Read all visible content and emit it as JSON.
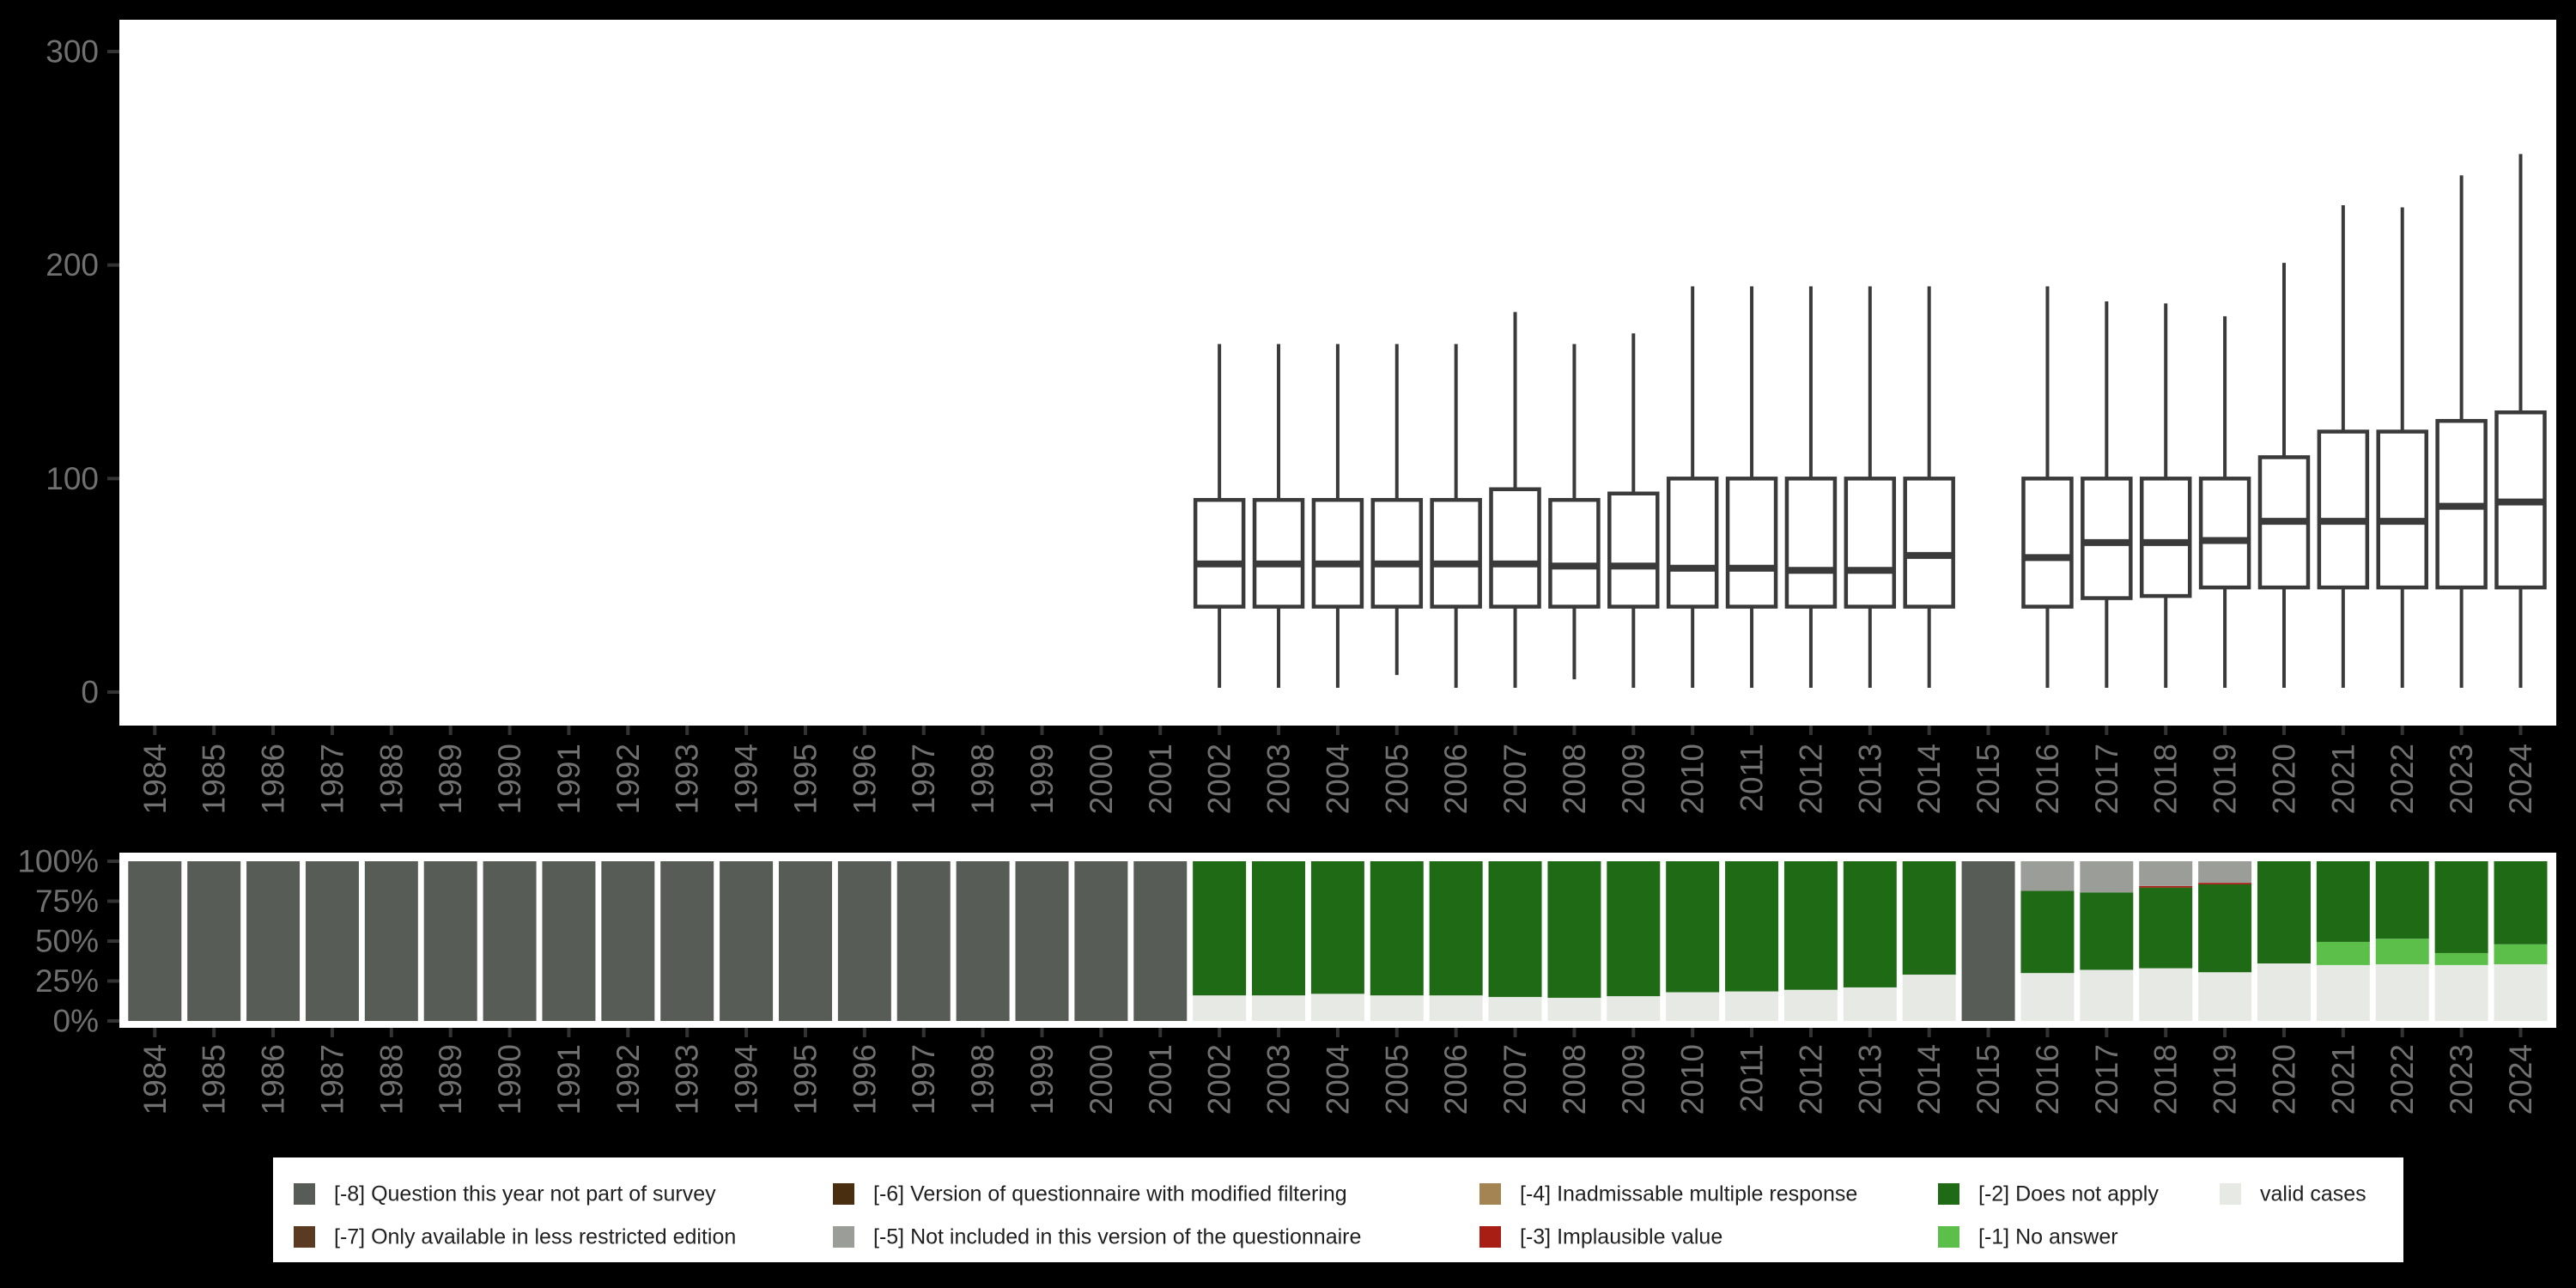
{
  "colors": {
    "-8": "#575D56",
    "-7": "#5A3A20",
    "-6": "#4A2E10",
    "-5": "#9B9E98",
    "-4": "#A58454",
    "-3": "#A81E15",
    "-2": "#1F6B15",
    "-1": "#5BBF4A",
    "valid": "#E7EAE4",
    "background": "#000000",
    "panel": "#FFFFFF",
    "axis_text": "#707070",
    "tick": "#333333",
    "box_stroke": "#3A3A3A",
    "legend_text": "#1F1F1F",
    "legend_background": "#FFFFFF"
  },
  "chart_data": [
    {
      "type": "boxplot",
      "title": "",
      "xlabel": "",
      "ylabel": "",
      "ylim": [
        0,
        300
      ],
      "grid": false,
      "categories": [
        "1984",
        "1985",
        "1986",
        "1987",
        "1988",
        "1989",
        "1990",
        "1991",
        "1992",
        "1993",
        "1994",
        "1995",
        "1996",
        "1997",
        "1998",
        "1999",
        "2000",
        "2001",
        "2002",
        "2003",
        "2004",
        "2005",
        "2006",
        "2007",
        "2008",
        "2009",
        "2010",
        "2011",
        "2012",
        "2013",
        "2014",
        "2015",
        "2016",
        "2017",
        "2018",
        "2019",
        "2020",
        "2021",
        "2022",
        "2023",
        "2024"
      ],
      "y_ticks": [
        {
          "value": 0,
          "label": "0"
        },
        {
          "value": 100,
          "label": "100"
        },
        {
          "value": 200,
          "label": "200"
        },
        {
          "value": 300,
          "label": "300"
        }
      ],
      "boxes": [
        {
          "year": "2002",
          "low": 2,
          "q1": 40,
          "median": 60,
          "q3": 90,
          "high": 163
        },
        {
          "year": "2003",
          "low": 2,
          "q1": 40,
          "median": 60,
          "q3": 90,
          "high": 163
        },
        {
          "year": "2004",
          "low": 2,
          "q1": 40,
          "median": 60,
          "q3": 90,
          "high": 163
        },
        {
          "year": "2005",
          "low": 8,
          "q1": 40,
          "median": 60,
          "q3": 90,
          "high": 163
        },
        {
          "year": "2006",
          "low": 2,
          "q1": 40,
          "median": 60,
          "q3": 90,
          "high": 163
        },
        {
          "year": "2007",
          "low": 2,
          "q1": 40,
          "median": 60,
          "q3": 95,
          "high": 178
        },
        {
          "year": "2008",
          "low": 6,
          "q1": 40,
          "median": 59,
          "q3": 90,
          "high": 163
        },
        {
          "year": "2009",
          "low": 2,
          "q1": 40,
          "median": 59,
          "q3": 93,
          "high": 168
        },
        {
          "year": "2010",
          "low": 2,
          "q1": 40,
          "median": 58,
          "q3": 100,
          "high": 190
        },
        {
          "year": "2011",
          "low": 2,
          "q1": 40,
          "median": 58,
          "q3": 100,
          "high": 190
        },
        {
          "year": "2012",
          "low": 2,
          "q1": 40,
          "median": 57,
          "q3": 100,
          "high": 190
        },
        {
          "year": "2013",
          "low": 2,
          "q1": 40,
          "median": 57,
          "q3": 100,
          "high": 190
        },
        {
          "year": "2014",
          "low": 2,
          "q1": 40,
          "median": 64,
          "q3": 100,
          "high": 190
        },
        {
          "year": "2016",
          "low": 2,
          "q1": 40,
          "median": 63,
          "q3": 100,
          "high": 190
        },
        {
          "year": "2017",
          "low": 2,
          "q1": 44,
          "median": 70,
          "q3": 100,
          "high": 183
        },
        {
          "year": "2018",
          "low": 2,
          "q1": 45,
          "median": 70,
          "q3": 100,
          "high": 182
        },
        {
          "year": "2019",
          "low": 2,
          "q1": 49,
          "median": 71,
          "q3": 100,
          "high": 176
        },
        {
          "year": "2020",
          "low": 2,
          "q1": 49,
          "median": 80,
          "q3": 110,
          "high": 201
        },
        {
          "year": "2021",
          "low": 2,
          "q1": 49,
          "median": 80,
          "q3": 122,
          "high": 228
        },
        {
          "year": "2022",
          "low": 2,
          "q1": 49,
          "median": 80,
          "q3": 122,
          "high": 227
        },
        {
          "year": "2023",
          "low": 2,
          "q1": 49,
          "median": 87,
          "q3": 127,
          "high": 242
        },
        {
          "year": "2024",
          "low": 2,
          "q1": 49,
          "median": 89,
          "q3": 131,
          "high": 252
        }
      ]
    },
    {
      "type": "bar",
      "stacked": true,
      "unit": "percent",
      "title": "",
      "xlabel": "",
      "ylabel": "",
      "ylim": [
        0,
        100
      ],
      "grid": false,
      "categories": [
        "1984",
        "1985",
        "1986",
        "1987",
        "1988",
        "1989",
        "1990",
        "1991",
        "1992",
        "1993",
        "1994",
        "1995",
        "1996",
        "1997",
        "1998",
        "1999",
        "2000",
        "2001",
        "2002",
        "2003",
        "2004",
        "2005",
        "2006",
        "2007",
        "2008",
        "2009",
        "2010",
        "2011",
        "2012",
        "2013",
        "2014",
        "2015",
        "2016",
        "2017",
        "2018",
        "2019",
        "2020",
        "2021",
        "2022",
        "2023",
        "2024"
      ],
      "y_ticks": [
        {
          "value": 0,
          "label": "0%"
        },
        {
          "value": 25,
          "label": "25%"
        },
        {
          "value": 50,
          "label": "50%"
        },
        {
          "value": 75,
          "label": "75%"
        },
        {
          "value": 100,
          "label": "100%"
        }
      ],
      "stacks": [
        {
          "year": "1984",
          "segments": [
            {
              "key": "-8",
              "pct": 100
            }
          ]
        },
        {
          "year": "1985",
          "segments": [
            {
              "key": "-8",
              "pct": 100
            }
          ]
        },
        {
          "year": "1986",
          "segments": [
            {
              "key": "-8",
              "pct": 100
            }
          ]
        },
        {
          "year": "1987",
          "segments": [
            {
              "key": "-8",
              "pct": 100
            }
          ]
        },
        {
          "year": "1988",
          "segments": [
            {
              "key": "-8",
              "pct": 100
            }
          ]
        },
        {
          "year": "1989",
          "segments": [
            {
              "key": "-8",
              "pct": 100
            }
          ]
        },
        {
          "year": "1990",
          "segments": [
            {
              "key": "-8",
              "pct": 100
            }
          ]
        },
        {
          "year": "1991",
          "segments": [
            {
              "key": "-8",
              "pct": 100
            }
          ]
        },
        {
          "year": "1992",
          "segments": [
            {
              "key": "-8",
              "pct": 100
            }
          ]
        },
        {
          "year": "1993",
          "segments": [
            {
              "key": "-8",
              "pct": 100
            }
          ]
        },
        {
          "year": "1994",
          "segments": [
            {
              "key": "-8",
              "pct": 100
            }
          ]
        },
        {
          "year": "1995",
          "segments": [
            {
              "key": "-8",
              "pct": 100
            }
          ]
        },
        {
          "year": "1996",
          "segments": [
            {
              "key": "-8",
              "pct": 100
            }
          ]
        },
        {
          "year": "1997",
          "segments": [
            {
              "key": "-8",
              "pct": 100
            }
          ]
        },
        {
          "year": "1998",
          "segments": [
            {
              "key": "-8",
              "pct": 100
            }
          ]
        },
        {
          "year": "1999",
          "segments": [
            {
              "key": "-8",
              "pct": 100
            }
          ]
        },
        {
          "year": "2000",
          "segments": [
            {
              "key": "-8",
              "pct": 100
            }
          ]
        },
        {
          "year": "2001",
          "segments": [
            {
              "key": "-8",
              "pct": 100
            }
          ]
        },
        {
          "year": "2002",
          "segments": [
            {
              "key": "-2",
              "pct": 84
            },
            {
              "key": "valid",
              "pct": 16
            }
          ]
        },
        {
          "year": "2003",
          "segments": [
            {
              "key": "-2",
              "pct": 84
            },
            {
              "key": "valid",
              "pct": 16
            }
          ]
        },
        {
          "year": "2004",
          "segments": [
            {
              "key": "-2",
              "pct": 83
            },
            {
              "key": "valid",
              "pct": 17
            }
          ]
        },
        {
          "year": "2005",
          "segments": [
            {
              "key": "-2",
              "pct": 84
            },
            {
              "key": "valid",
              "pct": 16
            }
          ]
        },
        {
          "year": "2006",
          "segments": [
            {
              "key": "-2",
              "pct": 84
            },
            {
              "key": "valid",
              "pct": 16
            }
          ]
        },
        {
          "year": "2007",
          "segments": [
            {
              "key": "-2",
              "pct": 85
            },
            {
              "key": "valid",
              "pct": 15
            }
          ]
        },
        {
          "year": "2008",
          "segments": [
            {
              "key": "-2",
              "pct": 85.5
            },
            {
              "key": "valid",
              "pct": 14.5
            }
          ]
        },
        {
          "year": "2009",
          "segments": [
            {
              "key": "-2",
              "pct": 84.5
            },
            {
              "key": "valid",
              "pct": 15.5
            }
          ]
        },
        {
          "year": "2010",
          "segments": [
            {
              "key": "-2",
              "pct": 82
            },
            {
              "key": "valid",
              "pct": 18
            }
          ]
        },
        {
          "year": "2011",
          "segments": [
            {
              "key": "-2",
              "pct": 81.5
            },
            {
              "key": "valid",
              "pct": 18.5
            }
          ]
        },
        {
          "year": "2012",
          "segments": [
            {
              "key": "-2",
              "pct": 80.5
            },
            {
              "key": "valid",
              "pct": 19.5
            }
          ]
        },
        {
          "year": "2013",
          "segments": [
            {
              "key": "-2",
              "pct": 79
            },
            {
              "key": "valid",
              "pct": 21
            }
          ]
        },
        {
          "year": "2014",
          "segments": [
            {
              "key": "-2",
              "pct": 71
            },
            {
              "key": "valid",
              "pct": 29
            }
          ]
        },
        {
          "year": "2015",
          "segments": [
            {
              "key": "-8",
              "pct": 100
            }
          ]
        },
        {
          "year": "2016",
          "segments": [
            {
              "key": "-5",
              "pct": 18.5
            },
            {
              "key": "-2",
              "pct": 51.5
            },
            {
              "key": "valid",
              "pct": 30
            }
          ]
        },
        {
          "year": "2017",
          "segments": [
            {
              "key": "-5",
              "pct": 19.5
            },
            {
              "key": "-2",
              "pct": 48.5
            },
            {
              "key": "valid",
              "pct": 32
            }
          ]
        },
        {
          "year": "2018",
          "segments": [
            {
              "key": "-5",
              "pct": 15.5
            },
            {
              "key": "-3",
              "pct": 1
            },
            {
              "key": "-2",
              "pct": 50.5
            },
            {
              "key": "valid",
              "pct": 33
            }
          ]
        },
        {
          "year": "2019",
          "segments": [
            {
              "key": "-5",
              "pct": 13.5
            },
            {
              "key": "-3",
              "pct": 1
            },
            {
              "key": "-2",
              "pct": 55
            },
            {
              "key": "valid",
              "pct": 30.5
            }
          ]
        },
        {
          "year": "2020",
          "segments": [
            {
              "key": "-2",
              "pct": 64
            },
            {
              "key": "valid",
              "pct": 36
            }
          ]
        },
        {
          "year": "2021",
          "segments": [
            {
              "key": "-2",
              "pct": 50.5
            },
            {
              "key": "-1",
              "pct": 14.5
            },
            {
              "key": "valid",
              "pct": 35
            }
          ]
        },
        {
          "year": "2022",
          "segments": [
            {
              "key": "-2",
              "pct": 48.5
            },
            {
              "key": "-1",
              "pct": 16
            },
            {
              "key": "valid",
              "pct": 35.5
            }
          ]
        },
        {
          "year": "2023",
          "segments": [
            {
              "key": "-2",
              "pct": 57.5
            },
            {
              "key": "-1",
              "pct": 7.5
            },
            {
              "key": "valid",
              "pct": 35
            }
          ]
        },
        {
          "year": "2024",
          "segments": [
            {
              "key": "-2",
              "pct": 52
            },
            {
              "key": "-1",
              "pct": 12.5
            },
            {
              "key": "valid",
              "pct": 35.5
            }
          ]
        }
      ]
    }
  ],
  "legend": {
    "items": [
      {
        "key": "-8",
        "label": "[-8] Question this year not part of survey",
        "row": 0,
        "col": 0
      },
      {
        "key": "-7",
        "label": "[-7] Only available in less restricted edition",
        "row": 1,
        "col": 0
      },
      {
        "key": "-6",
        "label": "[-6] Version of questionnaire with modified filtering",
        "row": 0,
        "col": 1
      },
      {
        "key": "-5",
        "label": "[-5] Not included in this version of the questionnaire",
        "row": 1,
        "col": 1
      },
      {
        "key": "-4",
        "label": "[-4] Inadmissable multiple response",
        "row": 0,
        "col": 2
      },
      {
        "key": "-3",
        "label": "[-3] Implausible value",
        "row": 1,
        "col": 2
      },
      {
        "key": "-2",
        "label": "[-2] Does not apply",
        "row": 0,
        "col": 3
      },
      {
        "key": "-1",
        "label": "[-1] No answer",
        "row": 1,
        "col": 3
      },
      {
        "key": "valid",
        "label": "valid cases",
        "row": 0,
        "col": 4
      }
    ]
  }
}
